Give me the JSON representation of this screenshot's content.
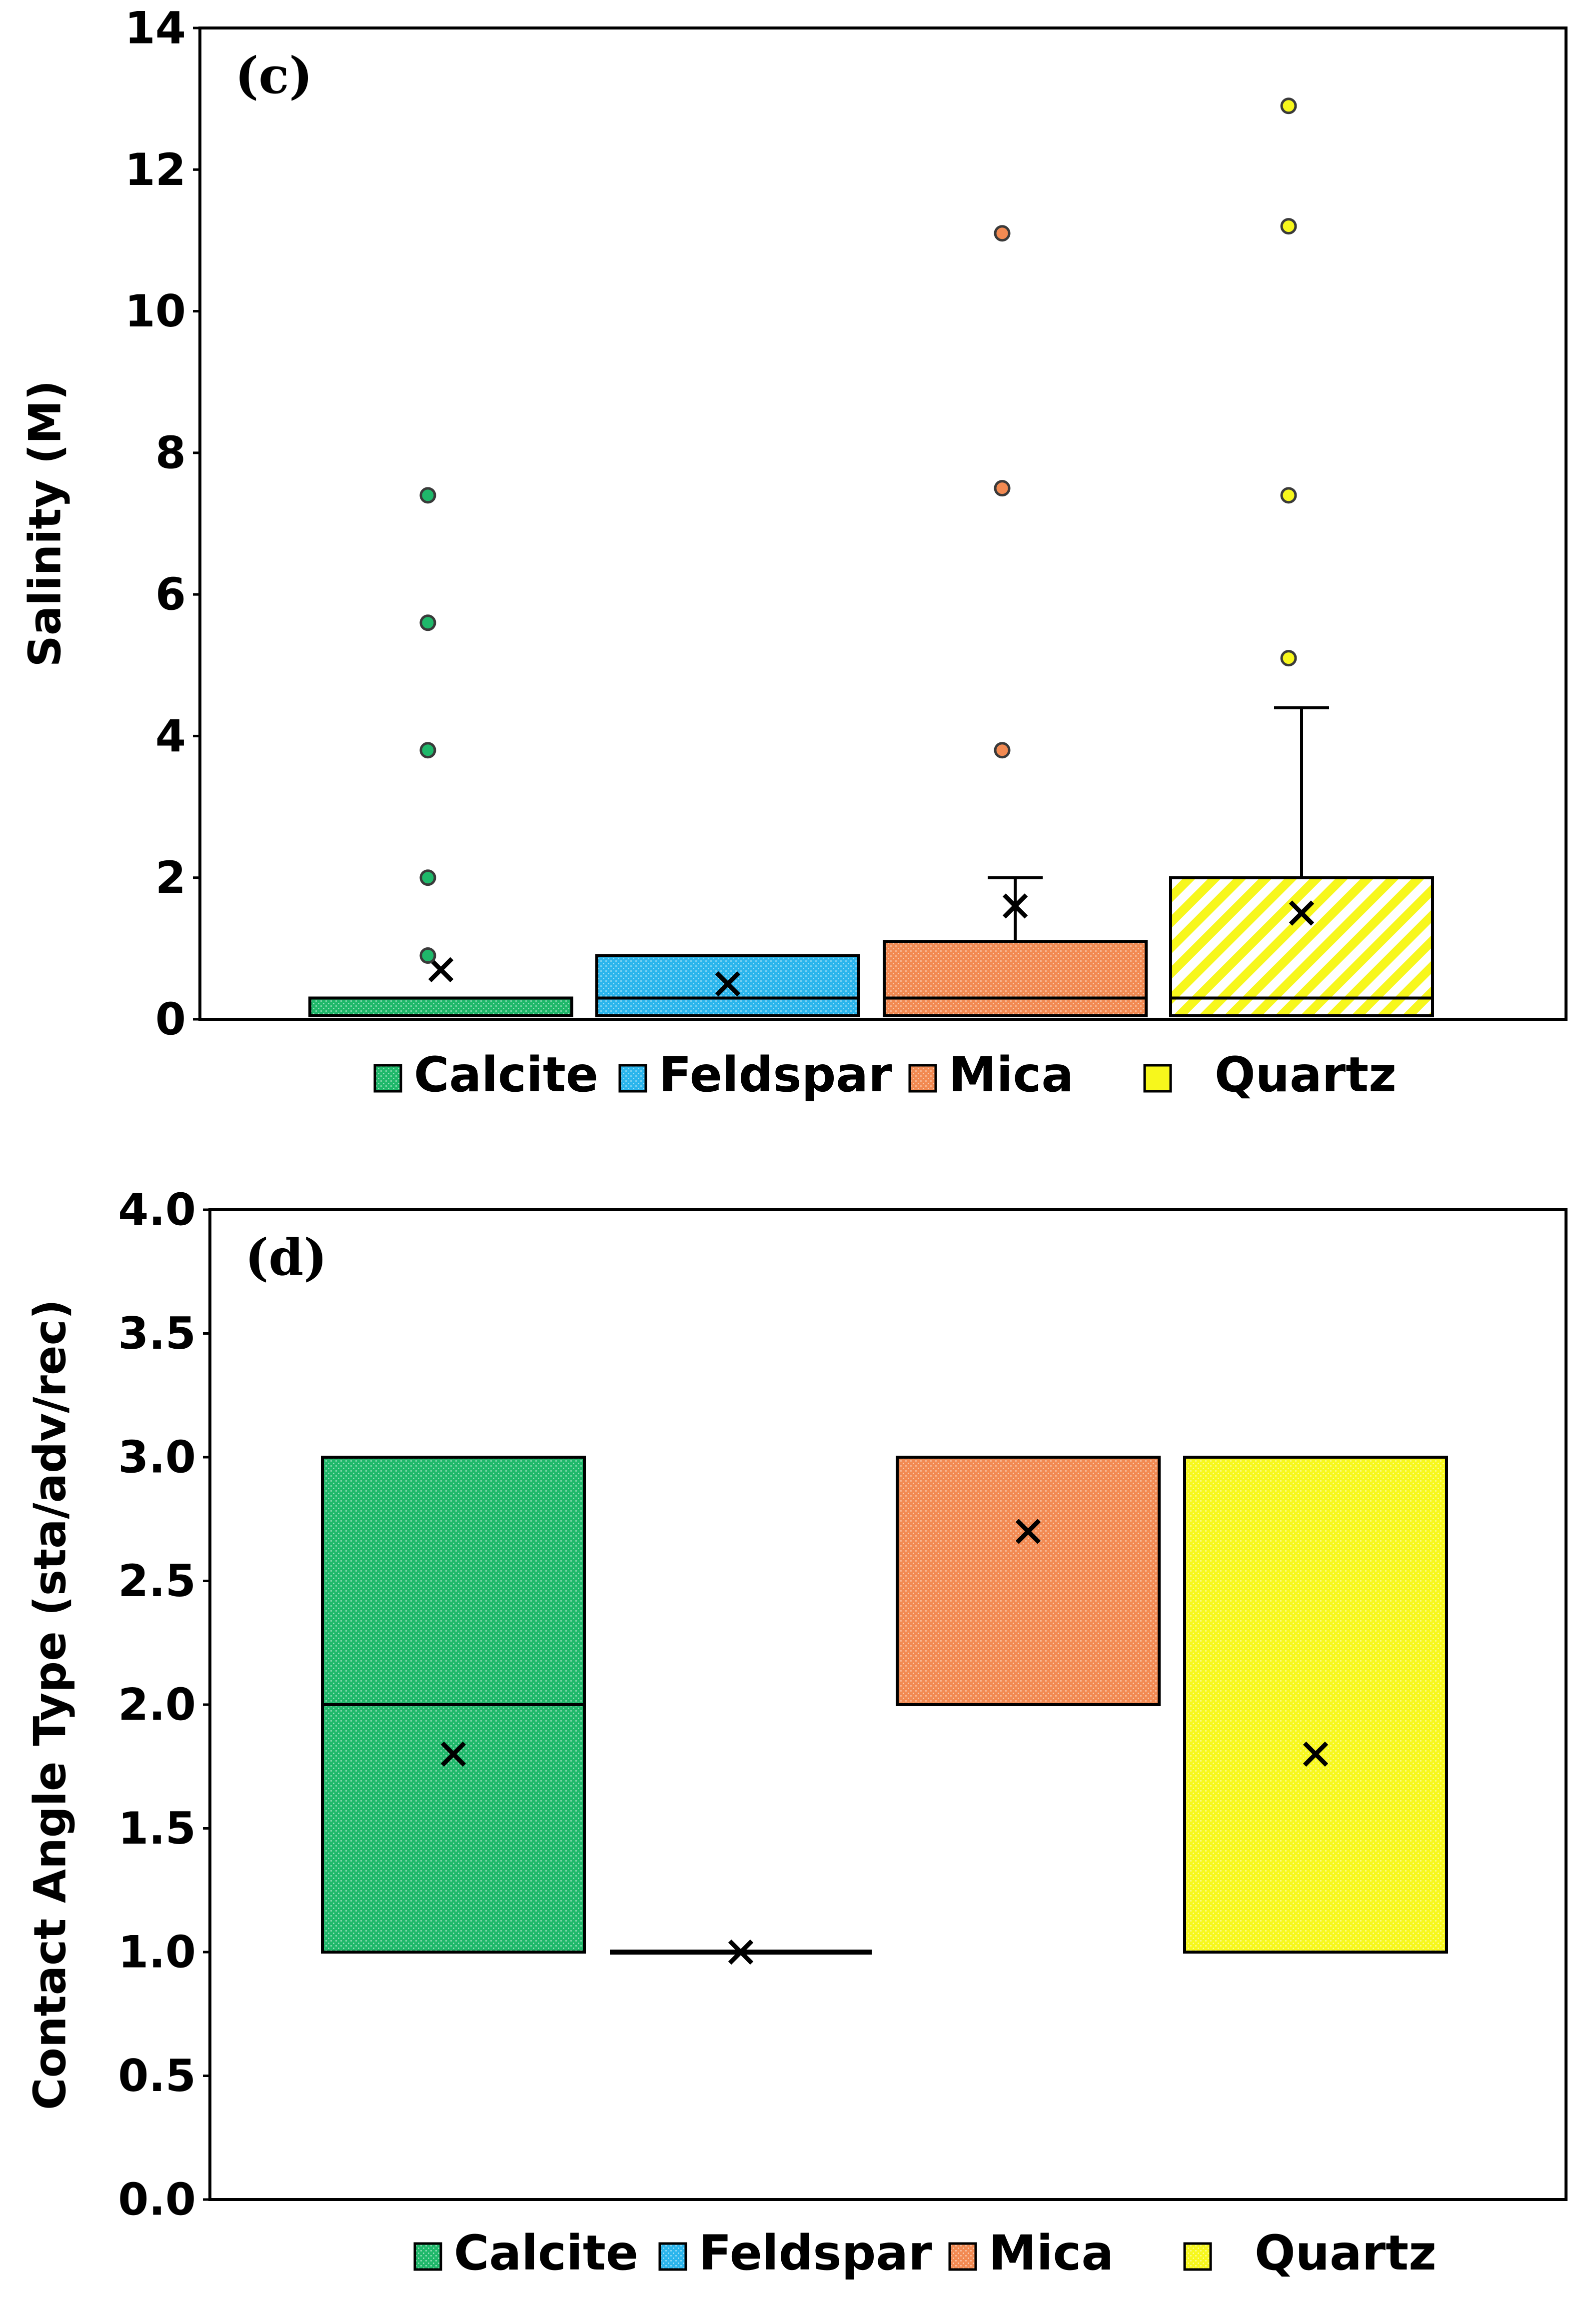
{
  "chart_data": [
    {
      "type": "box",
      "panel_label": "(c)",
      "title": "",
      "xlabel": "",
      "ylabel": "Salinity (M)",
      "ylim": [
        0,
        14
      ],
      "yticks": [
        "0",
        "2",
        "4",
        "6",
        "8",
        "10",
        "12",
        "14"
      ],
      "grid": false,
      "legend_position": "bottom",
      "categories": [
        "Calcite",
        "Feldspar",
        "Mica",
        "Quartz"
      ],
      "series": [
        {
          "name": "Calcite",
          "q1": 0.05,
          "median": 0.05,
          "q3": 0.3,
          "whisker_low": 0.05,
          "whisker_high": 0.3,
          "mean": 0.7,
          "outliers": [
            0.9,
            2.0,
            3.8,
            5.6,
            7.4
          ]
        },
        {
          "name": "Feldspar",
          "q1": 0.05,
          "median": 0.3,
          "q3": 0.9,
          "whisker_low": 0.05,
          "whisker_high": 0.9,
          "mean": 0.5,
          "outliers": []
        },
        {
          "name": "Mica",
          "q1": 0.05,
          "median": 0.3,
          "q3": 1.1,
          "whisker_low": 0.05,
          "whisker_high": 2.0,
          "mean": 1.6,
          "outliers": [
            3.8,
            7.5,
            11.1
          ]
        },
        {
          "name": "Quartz",
          "q1": 0.05,
          "median": 0.3,
          "q3": 2.0,
          "whisker_low": 0.05,
          "whisker_high": 4.4,
          "mean": 1.5,
          "outliers": [
            5.1,
            7.4,
            11.2,
            12.9
          ]
        }
      ]
    },
    {
      "type": "box",
      "panel_label": "(d)",
      "title": "",
      "xlabel": "",
      "ylabel": "Contact Angle Type (sta/adv/rec)",
      "ylim": [
        0,
        4
      ],
      "yticks": [
        "0.0",
        "0.5",
        "1.0",
        "1.5",
        "2.0",
        "2.5",
        "3.0",
        "3.5",
        "4.0"
      ],
      "grid": false,
      "legend_position": "bottom",
      "categories": [
        "Calcite",
        "Feldspar",
        "Mica",
        "Quartz"
      ],
      "series": [
        {
          "name": "Calcite",
          "q1": 1.0,
          "median": 2.0,
          "q3": 3.0,
          "whisker_low": 1.0,
          "whisker_high": 3.0,
          "mean": 1.8,
          "outliers": []
        },
        {
          "name": "Feldspar",
          "q1": 1.0,
          "median": 1.0,
          "q3": 1.0,
          "whisker_low": 1.0,
          "whisker_high": 1.0,
          "mean": 1.0,
          "outliers": []
        },
        {
          "name": "Mica",
          "q1": 2.0,
          "median": 2.0,
          "q3": 3.0,
          "whisker_low": 2.0,
          "whisker_high": 3.0,
          "mean": 2.7,
          "outliers": []
        },
        {
          "name": "Quartz",
          "q1": 1.0,
          "median": 1.0,
          "q3": 3.0,
          "whisker_low": 1.0,
          "whisker_high": 3.0,
          "mean": 1.8,
          "outliers": []
        }
      ]
    }
  ],
  "legend": [
    "Calcite",
    "Feldspar",
    "Mica",
    "Quartz"
  ],
  "colors": {
    "Calcite": "#1fb86a",
    "Feldspar": "#2bb5ec",
    "Mica": "#f28a52",
    "Quartz": "#f7f71c",
    "stroke": "#000000"
  }
}
